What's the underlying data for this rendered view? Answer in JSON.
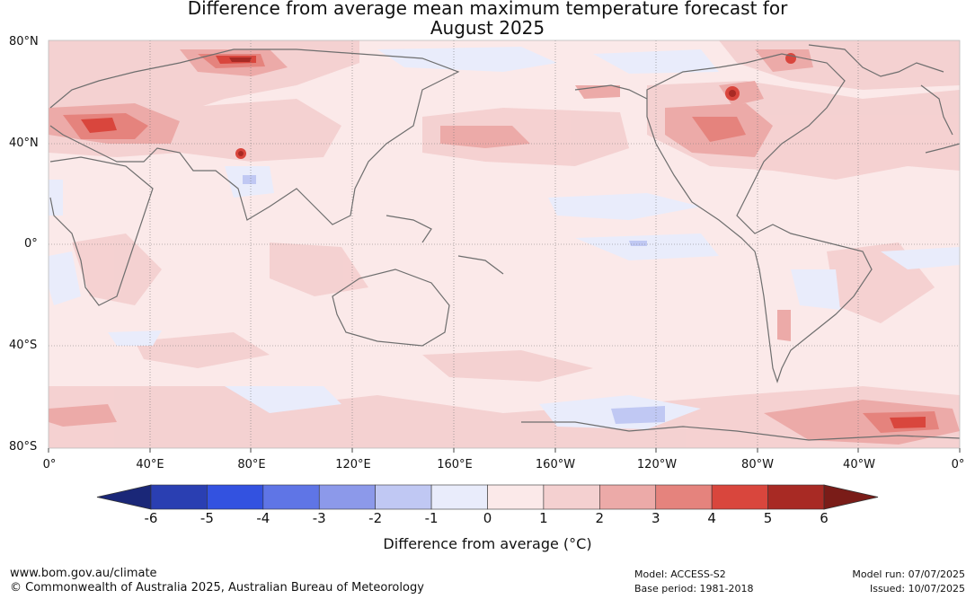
{
  "title_line1": "Difference from average mean maximum temperature forecast for",
  "title_line2": "August 2025",
  "lat_labels": [
    "80°N",
    "40°N",
    "0°",
    "40°S",
    "80°S"
  ],
  "lon_labels": [
    "0°",
    "40°E",
    "80°E",
    "120°E",
    "160°E",
    "160°W",
    "120°W",
    "80°W",
    "40°W",
    "0°"
  ],
  "colorbar": {
    "ticks": [
      "-6",
      "-5",
      "-4",
      "-3",
      "-2",
      "-1",
      "0",
      "1",
      "2",
      "3",
      "4",
      "5",
      "6"
    ],
    "colors": [
      "#1a2778",
      "#2a3fb2",
      "#3352e0",
      "#5f75e6",
      "#8c99ea",
      "#c0c8f3",
      "#e9ecfb",
      "#fbe9e9",
      "#f4d0d0",
      "#ecaaa8",
      "#e5837d",
      "#d9463d",
      "#a82a24",
      "#7a1c18"
    ],
    "label": "Difference from average (°C)"
  },
  "footer": {
    "website": "www.bom.gov.au/climate",
    "copyright": "© Commonwealth of Australia 2025, Australian Bureau of Meteorology",
    "model": "Model: ACCESS-S2",
    "base_period": "Base period: 1981-2018",
    "model_run": "Model run: 07/07/2025",
    "issued": "Issued: 10/07/2025"
  },
  "map": {
    "background_color": "#fbe9e9",
    "coastline_color": "#6e6e6e",
    "gridline_color": "#777777"
  }
}
